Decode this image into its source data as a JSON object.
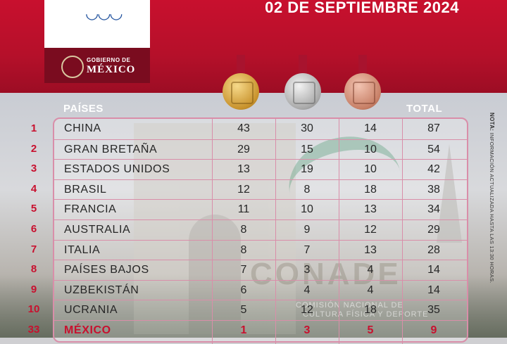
{
  "header": {
    "date": "02 DE SEPTIEMBRE 2024",
    "gobierno_line1": "GOBIERNO DE",
    "gobierno_line2": "MÉXICO",
    "paralympic_glyph": "◡◡◡"
  },
  "columns": {
    "paises": "PAÍSES",
    "total": "TOTAL"
  },
  "medals": [
    "gold",
    "silver",
    "bronze"
  ],
  "rows": [
    {
      "rank": "1",
      "country": "CHINA",
      "gold": "43",
      "silver": "30",
      "bronze": "14",
      "total": "87"
    },
    {
      "rank": "2",
      "country": "GRAN BRETAÑA",
      "gold": "29",
      "silver": "15",
      "bronze": "10",
      "total": "54"
    },
    {
      "rank": "3",
      "country": "ESTADOS UNIDOS",
      "gold": "13",
      "silver": "19",
      "bronze": "10",
      "total": "42"
    },
    {
      "rank": "4",
      "country": "BRASIL",
      "gold": "12",
      "silver": "8",
      "bronze": "18",
      "total": "38"
    },
    {
      "rank": "5",
      "country": "FRANCIA",
      "gold": "11",
      "silver": "10",
      "bronze": "13",
      "total": "34"
    },
    {
      "rank": "6",
      "country": "AUSTRALIA",
      "gold": "8",
      "silver": "9",
      "bronze": "12",
      "total": "29"
    },
    {
      "rank": "7",
      "country": "ITALIA",
      "gold": "8",
      "silver": "7",
      "bronze": "13",
      "total": "28"
    },
    {
      "rank": "8",
      "country": "PAÍSES BAJOS",
      "gold": "7",
      "silver": "3",
      "bronze": "4",
      "total": "14"
    },
    {
      "rank": "9",
      "country": "UZBEKISTÁN",
      "gold": "6",
      "silver": "4",
      "bronze": "4",
      "total": "14"
    },
    {
      "rank": "10",
      "country": "UCRANIA",
      "gold": "5",
      "silver": "12",
      "bronze": "18",
      "total": "35"
    },
    {
      "rank": "33",
      "country": "MÉXICO",
      "gold": "1",
      "silver": "3",
      "bronze": "5",
      "total": "9"
    }
  ],
  "watermark": {
    "brand": "CONADE",
    "line1": "COMISIÓN NACIONAL DE",
    "line2": "CULTURA FÍSICA Y DEPORTE"
  },
  "note": {
    "label": "NOTA:",
    "text": "INFORMACIÓN ACTUALIZADA HASTA LAS 13:30 HORAS."
  },
  "colors": {
    "brand_red": "#c8102e",
    "border_pink": "#d98ea9"
  }
}
